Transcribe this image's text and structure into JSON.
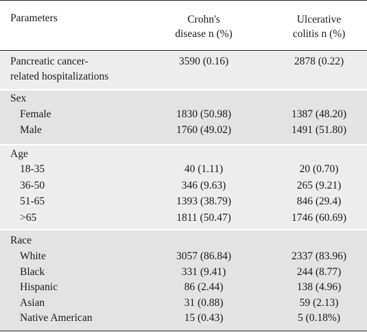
{
  "header": {
    "parameters": "Parameters",
    "cd_line1": "Crohn's",
    "cd_line2": "disease n (%)",
    "uc_line1": "Ulcerative",
    "uc_line2": "colitis n (%)"
  },
  "pancreatic": {
    "label_line1": "Pancreatic cancer-",
    "label_line2": "related hospitalizations",
    "cd": "3590 (0.16)",
    "uc": "2878 (0.22)"
  },
  "sex": {
    "title": "Sex",
    "rows": [
      {
        "label": "Female",
        "cd": "1830 (50.98)",
        "uc": "1387 (48.20)"
      },
      {
        "label": "Male",
        "cd": "1760 (49.02)",
        "uc": "1491 (51.80)"
      }
    ]
  },
  "age": {
    "title": "Age",
    "rows": [
      {
        "label": "18-35",
        "cd": "40 (1.11)",
        "uc": "20 (0.70)"
      },
      {
        "label": "36-50",
        "cd": "346 (9.63)",
        "uc": "265 (9.21)"
      },
      {
        "label": "51-65",
        "cd": "1393 (38.79)",
        "uc": "846 (29.4)"
      },
      {
        "label": ">65",
        "cd": "1811 (50.47)",
        "uc": "1746 (60.69)"
      }
    ]
  },
  "race": {
    "title": "Race",
    "rows": [
      {
        "label": "White",
        "cd": "3057 (86.84)",
        "uc": "2337 (83.96)"
      },
      {
        "label": "Black",
        "cd": "331 (9.41)",
        "uc": "244 (8.77)"
      },
      {
        "label": "Hispanic",
        "cd": "86 (2.44)",
        "uc": "138 (4.96)"
      },
      {
        "label": "Asian",
        "cd": "31 (0.88)",
        "uc": "59 (2.13)"
      },
      {
        "label": "Native American",
        "cd": "15 (0.43)",
        "uc": "5 (0.18%)"
      }
    ]
  }
}
